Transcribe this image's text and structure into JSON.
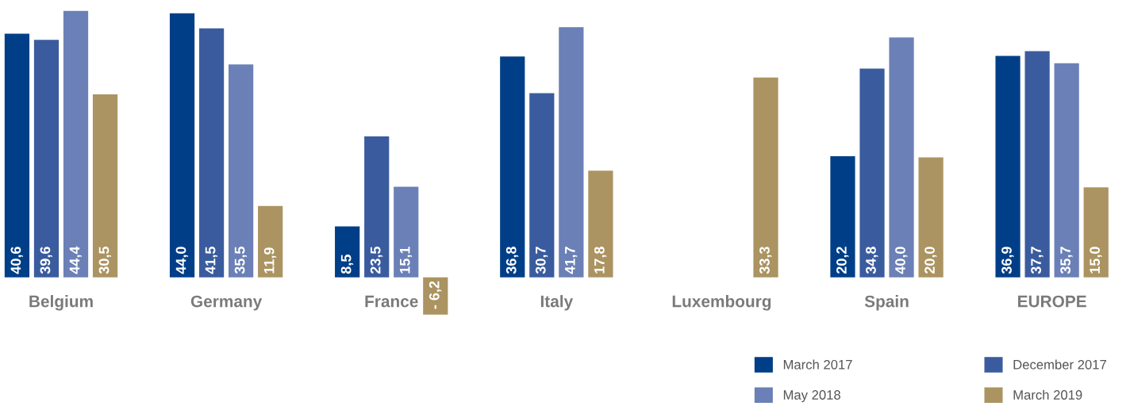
{
  "chart_data": {
    "type": "bar",
    "categories": [
      "Belgium",
      "Germany",
      "France",
      "Italy",
      "Luxembourg",
      "Spain",
      "EUROPE"
    ],
    "series": [
      {
        "name": "March 2017",
        "color": "#003f87",
        "values": [
          40.6,
          44.0,
          8.5,
          36.8,
          null,
          20.2,
          36.9
        ],
        "value_labels": [
          "40,6",
          "44,0",
          "8,5",
          "36,8",
          null,
          "20,2",
          "36,9"
        ]
      },
      {
        "name": "December 2017",
        "color": "#3a5c9e",
        "values": [
          39.6,
          41.5,
          23.5,
          30.7,
          null,
          34.8,
          37.7
        ],
        "value_labels": [
          "39,6",
          "41,5",
          "23,5",
          "30,7",
          null,
          "34,8",
          "37,7"
        ]
      },
      {
        "name": "May 2018",
        "color": "#6b80b6",
        "values": [
          44.4,
          35.5,
          15.1,
          41.7,
          null,
          40.0,
          35.7
        ],
        "value_labels": [
          "44,4",
          "35,5",
          "15,1",
          "41,7",
          null,
          "40,0",
          "35,7"
        ]
      },
      {
        "name": "March 2019",
        "color": "#ab9461",
        "values": [
          30.5,
          11.9,
          -6.2,
          17.8,
          33.3,
          20.0,
          15.0
        ],
        "value_labels": [
          "30,5",
          "11,9",
          "- 6,2",
          "17,8",
          "33,3",
          "20,0",
          "15,0"
        ]
      }
    ],
    "legend": "bottom right"
  }
}
